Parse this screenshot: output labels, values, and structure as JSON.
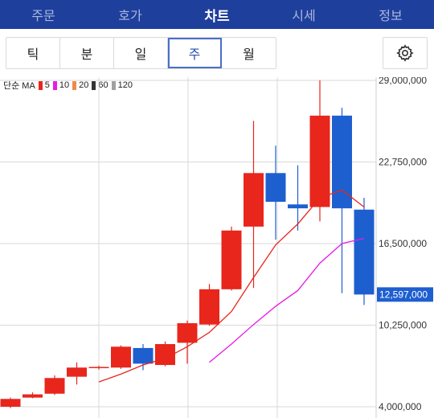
{
  "nav": {
    "tabs": [
      {
        "label": "주문",
        "active": false
      },
      {
        "label": "호가",
        "active": false
      },
      {
        "label": "차트",
        "active": true
      },
      {
        "label": "시세",
        "active": false
      },
      {
        "label": "정보",
        "active": false
      }
    ]
  },
  "period": {
    "buttons": [
      {
        "label": "틱",
        "active": false
      },
      {
        "label": "분",
        "active": false
      },
      {
        "label": "일",
        "active": false
      },
      {
        "label": "주",
        "active": true
      },
      {
        "label": "월",
        "active": false
      }
    ],
    "settings_icon": "gear-icon"
  },
  "legend": {
    "label": "단순 MA",
    "items": [
      {
        "value": "5",
        "color": "#e8261c"
      },
      {
        "value": "10",
        "color": "#e41ce4"
      },
      {
        "value": "20",
        "color": "#f08a4b"
      },
      {
        "value": "60",
        "color": "#333333"
      },
      {
        "value": "120",
        "color": "#a0a0a0"
      }
    ]
  },
  "colors": {
    "up": "#e8261c",
    "down": "#1e5fd0",
    "nav_bg": "#1f3f9c",
    "price_tag_bg": "#1e5fd0"
  },
  "chart_data": {
    "type": "candlestick",
    "y_ticks": [
      "29,000,000",
      "22,750,000",
      "16,500,000",
      "10,250,000",
      "4,000,000"
    ],
    "y_tick_values": [
      29000000,
      22750000,
      16500000,
      10250000,
      4000000
    ],
    "ylim": [
      4000000,
      29000000
    ],
    "current_price": "12,597,000",
    "current_price_value": 12597000,
    "candles": [
      {
        "o": 4000000,
        "h": 4700000,
        "l": 3900000,
        "c": 4600000
      },
      {
        "o": 4700000,
        "h": 5100000,
        "l": 4650000,
        "c": 4950000
      },
      {
        "o": 5000000,
        "h": 6400000,
        "l": 4900000,
        "c": 6200000
      },
      {
        "o": 6300000,
        "h": 7400000,
        "l": 5700000,
        "c": 7000000
      },
      {
        "o": 7000000,
        "h": 7150000,
        "l": 6850000,
        "c": 7050000
      },
      {
        "o": 7000000,
        "h": 8700000,
        "l": 6900000,
        "c": 8600000
      },
      {
        "o": 8500000,
        "h": 8800000,
        "l": 6800000,
        "c": 7300000
      },
      {
        "o": 7200000,
        "h": 9000000,
        "l": 7100000,
        "c": 8800000
      },
      {
        "o": 8900000,
        "h": 10600000,
        "l": 7300000,
        "c": 10400000
      },
      {
        "o": 10300000,
        "h": 13400000,
        "l": 10200000,
        "c": 13000000
      },
      {
        "o": 13000000,
        "h": 17800000,
        "l": 12900000,
        "c": 17500000
      },
      {
        "o": 17800000,
        "h": 25900000,
        "l": 13100000,
        "c": 21900000
      },
      {
        "o": 21900000,
        "h": 24000000,
        "l": 16800000,
        "c": 19700000
      },
      {
        "o": 19500000,
        "h": 22500000,
        "l": 17500000,
        "c": 19200000
      },
      {
        "o": 19300000,
        "h": 29000000,
        "l": 18200000,
        "c": 26300000
      },
      {
        "o": 26300000,
        "h": 26900000,
        "l": 12700000,
        "c": 19200000
      },
      {
        "o": 19100000,
        "h": 20000000,
        "l": 11800000,
        "c": 12597000
      }
    ],
    "ma5": [
      null,
      null,
      null,
      null,
      5900000,
      6500000,
      7200000,
      7700000,
      8600000,
      9700000,
      11300000,
      13900000,
      16400000,
      18000000,
      20000000,
      20600000,
      19300000
    ],
    "ma10": [
      null,
      null,
      null,
      null,
      null,
      null,
      null,
      null,
      null,
      7400000,
      8800000,
      10300000,
      11700000,
      12900000,
      15000000,
      16500000,
      16900000
    ],
    "grid": true
  }
}
